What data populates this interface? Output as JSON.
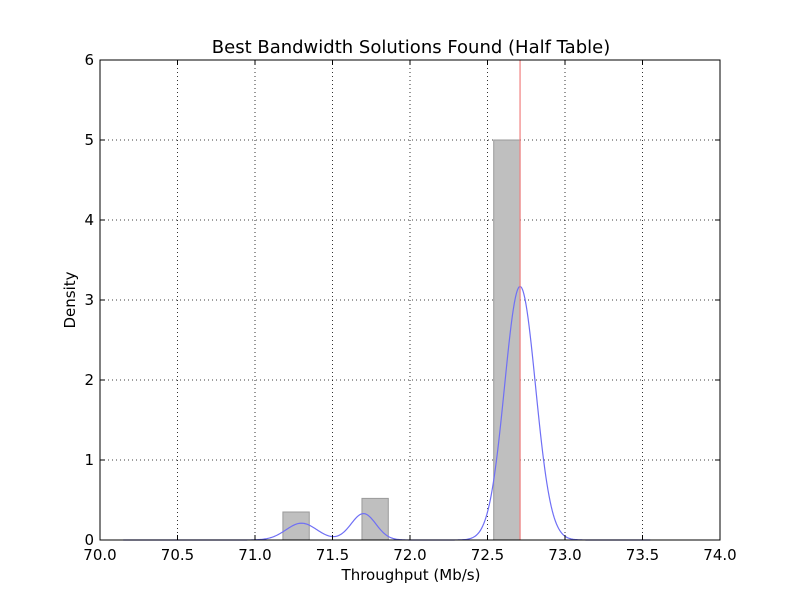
{
  "chart_data": {
    "type": "bar",
    "title": "Best Bandwidth Solutions Found (Half Table)",
    "xlabel": "Throughput (Mb/s)",
    "ylabel": "Density",
    "xlim": [
      70.0,
      74.0
    ],
    "ylim": [
      0,
      6
    ],
    "xticks": [
      70.0,
      70.5,
      71.0,
      71.5,
      72.0,
      72.5,
      73.0,
      73.5,
      74.0
    ],
    "xtick_labels": [
      "70.0",
      "70.5",
      "71.0",
      "71.5",
      "72.0",
      "72.5",
      "73.0",
      "73.5",
      "74.0"
    ],
    "yticks": [
      0,
      1,
      2,
      3,
      4,
      5,
      6
    ],
    "ytick_labels": [
      "0",
      "1",
      "2",
      "3",
      "4",
      "5",
      "6"
    ],
    "grid": true,
    "histogram": {
      "color": "#bfbfbf",
      "edge_color": "#9a9a9a",
      "bins": [
        {
          "x0": 71.18,
          "x1": 71.35,
          "density": 0.35
        },
        {
          "x0": 71.69,
          "x1": 71.86,
          "density": 0.52
        },
        {
          "x0": 72.54,
          "x1": 72.71,
          "density": 5.0
        }
      ]
    },
    "kde": {
      "color": "#6f6ff5",
      "x_range": [
        70.15,
        73.55
      ],
      "components": [
        {
          "mu": 71.3,
          "sigma": 0.1,
          "amplitude": 0.21
        },
        {
          "mu": 71.7,
          "sigma": 0.08,
          "amplitude": 0.33
        },
        {
          "mu": 72.71,
          "sigma": 0.1,
          "amplitude": 3.17
        }
      ]
    },
    "reference_line": {
      "x": 72.71,
      "color": "#f08080"
    }
  }
}
